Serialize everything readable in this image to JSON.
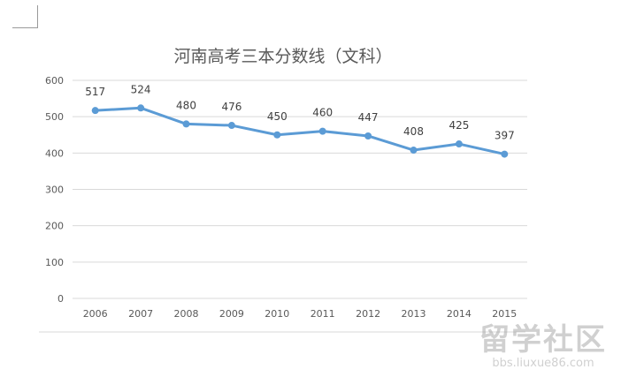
{
  "watermark": {
    "name": "留学社区",
    "url": "bbs.liuxue86.com"
  },
  "chart_data": {
    "type": "line",
    "title": "河南高考三本分数线（文科）",
    "categories": [
      "2006",
      "2007",
      "2008",
      "2009",
      "2010",
      "2011",
      "2012",
      "2013",
      "2014",
      "2015"
    ],
    "series": [
      {
        "values": [
          517,
          524,
          480,
          476,
          450,
          460,
          447,
          408,
          425,
          397
        ],
        "color": "#5b9bd5"
      }
    ],
    "ylim": [
      0,
      600
    ],
    "yticks": [
      "0",
      "100",
      "200",
      "300",
      "400",
      "500",
      "600"
    ],
    "data_labels": [
      "517",
      "524",
      "480",
      "476",
      "450",
      "460",
      "447",
      "408",
      "425",
      "397"
    ],
    "grid": true,
    "legend": "none"
  }
}
